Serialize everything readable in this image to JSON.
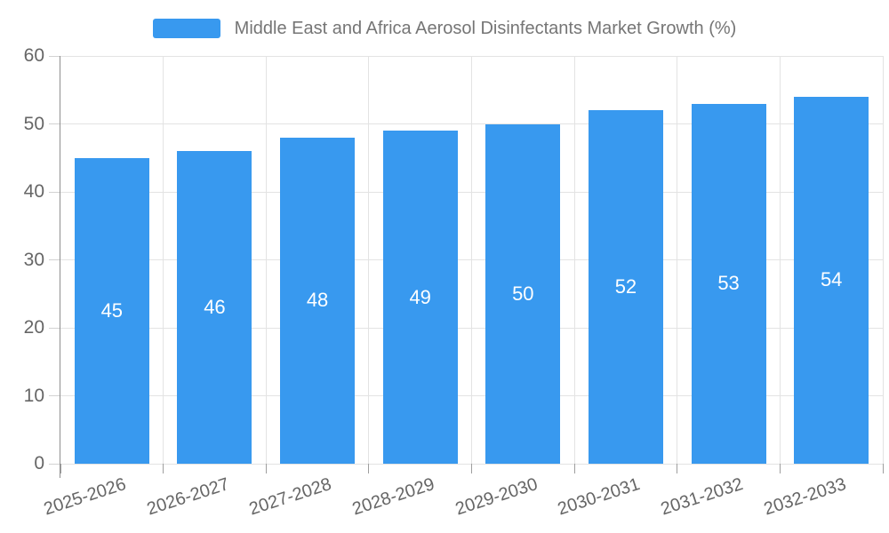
{
  "legend": {
    "label": "Middle East and Africa Aerosol Disinfectants Market Growth (%)"
  },
  "colors": {
    "bar": "#3899EF",
    "grid": "#e3e3e3",
    "axis": "#8f8f8f",
    "x_tick": "#9e9e9e",
    "y_tick": "#d2d2d2",
    "axis_text": "#666666",
    "legend_text": "#757575",
    "bar_label_text": "#ffffff",
    "background": "#ffffff"
  },
  "chart_data": {
    "type": "bar",
    "title": "Middle East and Africa Aerosol Disinfectants Market Growth (%)",
    "categories": [
      "2025-2026",
      "2026-2027",
      "2027-2028",
      "2028-2029",
      "2029-2030",
      "2030-2031",
      "2031-2032",
      "2032-2033"
    ],
    "values": [
      45,
      46,
      48,
      49,
      50,
      52,
      53,
      54
    ],
    "xlabel": "",
    "ylabel": "",
    "ylim": [
      0,
      60
    ],
    "yticks": [
      0,
      10,
      20,
      30,
      40,
      50,
      60
    ],
    "grid": true,
    "legend_position": "top",
    "bar_labels": "inside-center"
  }
}
